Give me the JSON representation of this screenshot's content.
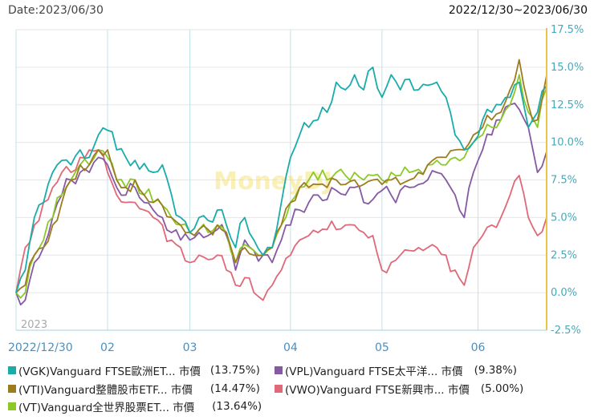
{
  "header": {
    "date_label": "Date:2023/06/30",
    "range_label": "2022/12/30~2023/06/30"
  },
  "watermark": "MoneyDJ",
  "chart_data": {
    "type": "line",
    "title": "",
    "y_unit": "%",
    "ylim": [
      -2.5,
      17.5
    ],
    "y_ticks": [
      "17.5%",
      "15.0%",
      "12.5%",
      "10.0%",
      "7.5%",
      "5.0%",
      "2.5%",
      "0.0%",
      "-2.5%"
    ],
    "y_tick_values": [
      17.5,
      15.0,
      12.5,
      10.0,
      7.5,
      5.0,
      2.5,
      0.0,
      -2.5
    ],
    "x_ticks": [
      "2022/12/30",
      "02",
      "03",
      "04",
      "05",
      "06"
    ],
    "x_tick_index": [
      0,
      20,
      38,
      60,
      80,
      101
    ],
    "year_label": "2023",
    "n_points": 117,
    "series": [
      {
        "name": "(VGK)Vanguard FTSE歐洲ET... 市價",
        "pct_label": "(13.75%)",
        "color": "#1aabab",
        "anchors": [
          [
            0,
            0
          ],
          [
            2,
            1.5
          ],
          [
            4,
            5
          ],
          [
            6,
            6
          ],
          [
            8,
            8
          ],
          [
            10,
            8.8
          ],
          [
            12,
            8.5
          ],
          [
            14,
            9.5
          ],
          [
            16,
            9
          ],
          [
            18,
            10.5
          ],
          [
            20,
            10.8
          ],
          [
            22,
            9.5
          ],
          [
            24,
            9
          ],
          [
            26,
            8.8
          ],
          [
            28,
            8.6
          ],
          [
            30,
            8
          ],
          [
            32,
            8.5
          ],
          [
            34,
            6.5
          ],
          [
            36,
            5
          ],
          [
            38,
            4
          ],
          [
            40,
            5
          ],
          [
            42,
            4.8
          ],
          [
            44,
            5.5
          ],
          [
            46,
            4.5
          ],
          [
            48,
            3
          ],
          [
            50,
            5
          ],
          [
            52,
            3.5
          ],
          [
            54,
            2.5
          ],
          [
            56,
            3
          ],
          [
            58,
            6
          ],
          [
            60,
            9
          ],
          [
            62,
            10.5
          ],
          [
            64,
            11
          ],
          [
            66,
            11.5
          ],
          [
            68,
            12
          ],
          [
            70,
            14
          ],
          [
            72,
            13.5
          ],
          [
            74,
            14.5
          ],
          [
            76,
            13.5
          ],
          [
            78,
            15
          ],
          [
            80,
            13
          ],
          [
            82,
            14.5
          ],
          [
            84,
            13.5
          ],
          [
            86,
            14.2
          ],
          [
            88,
            13.5
          ],
          [
            90,
            13.8
          ],
          [
            92,
            14
          ],
          [
            94,
            13
          ],
          [
            96,
            10.5
          ],
          [
            98,
            9.5
          ],
          [
            100,
            10
          ],
          [
            102,
            11.5
          ],
          [
            104,
            12
          ],
          [
            106,
            12.5
          ],
          [
            108,
            13
          ],
          [
            110,
            14
          ],
          [
            112,
            11
          ],
          [
            114,
            12
          ],
          [
            116,
            13.75
          ]
        ]
      },
      {
        "name": "(VPL)Vanguard FTSE太平洋... 市價",
        "pct_label": "(9.38%)",
        "color": "#8559a3",
        "anchors": [
          [
            0,
            0
          ],
          [
            2,
            -0.5
          ],
          [
            4,
            2
          ],
          [
            6,
            3
          ],
          [
            8,
            5
          ],
          [
            10,
            6.5
          ],
          [
            12,
            7.5
          ],
          [
            14,
            8
          ],
          [
            16,
            8
          ],
          [
            18,
            9
          ],
          [
            20,
            8.5
          ],
          [
            22,
            7
          ],
          [
            24,
            6.5
          ],
          [
            26,
            7
          ],
          [
            28,
            6
          ],
          [
            30,
            5.5
          ],
          [
            32,
            5
          ],
          [
            34,
            4
          ],
          [
            36,
            3.5
          ],
          [
            38,
            3.5
          ],
          [
            40,
            4
          ],
          [
            42,
            3.8
          ],
          [
            44,
            4.2
          ],
          [
            46,
            3.8
          ],
          [
            48,
            1.5
          ],
          [
            50,
            3.5
          ],
          [
            52,
            2.8
          ],
          [
            54,
            2.5
          ],
          [
            56,
            2
          ],
          [
            58,
            3.5
          ],
          [
            60,
            4.5
          ],
          [
            62,
            5.5
          ],
          [
            64,
            6
          ],
          [
            66,
            6.5
          ],
          [
            68,
            6.2
          ],
          [
            70,
            6.8
          ],
          [
            72,
            6.5
          ],
          [
            74,
            7
          ],
          [
            76,
            6
          ],
          [
            78,
            6.2
          ],
          [
            80,
            6.8
          ],
          [
            82,
            6.5
          ],
          [
            84,
            6.8
          ],
          [
            86,
            7
          ],
          [
            88,
            7.2
          ],
          [
            90,
            7.5
          ],
          [
            92,
            8
          ],
          [
            94,
            7.5
          ],
          [
            96,
            6.5
          ],
          [
            98,
            5
          ],
          [
            100,
            8
          ],
          [
            102,
            9.5
          ],
          [
            104,
            10.5
          ],
          [
            106,
            11.5
          ],
          [
            108,
            12.5
          ],
          [
            110,
            12.2
          ],
          [
            112,
            11
          ],
          [
            114,
            8
          ],
          [
            116,
            9.38
          ]
        ]
      },
      {
        "name": "(VTI)Vanguard整體股市ETF... 市價",
        "pct_label": "(14.47%)",
        "color": "#9c7c1f",
        "anchors": [
          [
            0,
            0
          ],
          [
            2,
            0.5
          ],
          [
            4,
            2.5
          ],
          [
            6,
            3
          ],
          [
            8,
            4.5
          ],
          [
            10,
            6
          ],
          [
            12,
            7.5
          ],
          [
            14,
            8.5
          ],
          [
            16,
            8.5
          ],
          [
            18,
            9.5
          ],
          [
            20,
            9.5
          ],
          [
            22,
            7.5
          ],
          [
            24,
            7
          ],
          [
            26,
            7.5
          ],
          [
            28,
            6.5
          ],
          [
            30,
            6
          ],
          [
            32,
            5.8
          ],
          [
            34,
            5
          ],
          [
            36,
            4.5
          ],
          [
            38,
            4
          ],
          [
            40,
            4.2
          ],
          [
            42,
            4.2
          ],
          [
            44,
            4.5
          ],
          [
            46,
            4
          ],
          [
            48,
            2
          ],
          [
            50,
            3
          ],
          [
            52,
            2.5
          ],
          [
            54,
            2.5
          ],
          [
            56,
            3
          ],
          [
            58,
            4.5
          ],
          [
            60,
            6
          ],
          [
            62,
            7
          ],
          [
            64,
            7
          ],
          [
            66,
            7.2
          ],
          [
            68,
            7
          ],
          [
            70,
            7.5
          ],
          [
            72,
            7.2
          ],
          [
            74,
            7.5
          ],
          [
            76,
            7.2
          ],
          [
            78,
            7.5
          ],
          [
            80,
            7.2
          ],
          [
            82,
            7.5
          ],
          [
            84,
            7.2
          ],
          [
            86,
            7.5
          ],
          [
            88,
            8
          ],
          [
            90,
            8.5
          ],
          [
            92,
            9
          ],
          [
            94,
            9
          ],
          [
            96,
            9.5
          ],
          [
            98,
            9.5
          ],
          [
            100,
            10.5
          ],
          [
            102,
            11
          ],
          [
            104,
            11.5
          ],
          [
            106,
            12
          ],
          [
            108,
            13.5
          ],
          [
            110,
            15.5
          ],
          [
            112,
            12.5
          ],
          [
            114,
            11.5
          ],
          [
            116,
            14.47
          ]
        ]
      },
      {
        "name": "(VWO)Vanguard FTSE新興市... 市價",
        "pct_label": "(5.00%)",
        "color": "#e06878",
        "anchors": [
          [
            0,
            0
          ],
          [
            2,
            3
          ],
          [
            4,
            4.5
          ],
          [
            6,
            6
          ],
          [
            8,
            7
          ],
          [
            10,
            8
          ],
          [
            12,
            8
          ],
          [
            14,
            9
          ],
          [
            16,
            9.5
          ],
          [
            18,
            9.5
          ],
          [
            20,
            8
          ],
          [
            22,
            6.5
          ],
          [
            24,
            6
          ],
          [
            26,
            6
          ],
          [
            28,
            5.5
          ],
          [
            30,
            5
          ],
          [
            32,
            4.5
          ],
          [
            34,
            3.5
          ],
          [
            36,
            3
          ],
          [
            38,
            2
          ],
          [
            40,
            2.5
          ],
          [
            42,
            2.2
          ],
          [
            44,
            2.5
          ],
          [
            46,
            1.5
          ],
          [
            48,
            0.5
          ],
          [
            50,
            1
          ],
          [
            52,
            0
          ],
          [
            54,
            -0.5
          ],
          [
            56,
            0.5
          ],
          [
            58,
            1.5
          ],
          [
            60,
            2.5
          ],
          [
            62,
            3.5
          ],
          [
            64,
            3.8
          ],
          [
            66,
            4
          ],
          [
            68,
            4.2
          ],
          [
            70,
            4.2
          ],
          [
            72,
            4.5
          ],
          [
            74,
            4.5
          ],
          [
            76,
            4
          ],
          [
            78,
            3.8
          ],
          [
            80,
            1.5
          ],
          [
            82,
            2
          ],
          [
            84,
            2.5
          ],
          [
            86,
            2.8
          ],
          [
            88,
            3
          ],
          [
            90,
            3
          ],
          [
            92,
            3
          ],
          [
            94,
            2.5
          ],
          [
            96,
            1.5
          ],
          [
            98,
            0.5
          ],
          [
            100,
            3
          ],
          [
            102,
            3.8
          ],
          [
            104,
            4.5
          ],
          [
            106,
            5
          ],
          [
            108,
            6.5
          ],
          [
            110,
            7.8
          ],
          [
            112,
            5
          ],
          [
            114,
            3.8
          ],
          [
            116,
            5.0
          ]
        ]
      },
      {
        "name": "(VT)Vanguard全世界股票ET... 市價",
        "pct_label": "(13.64%)",
        "color": "#8ac926",
        "anchors": [
          [
            0,
            0
          ],
          [
            2,
            0
          ],
          [
            4,
            2.5
          ],
          [
            6,
            3.5
          ],
          [
            8,
            5
          ],
          [
            10,
            6.5
          ],
          [
            12,
            7.5
          ],
          [
            14,
            8.5
          ],
          [
            16,
            8.5
          ],
          [
            18,
            9.5
          ],
          [
            20,
            9
          ],
          [
            22,
            7.5
          ],
          [
            24,
            7
          ],
          [
            26,
            7.5
          ],
          [
            28,
            6.5
          ],
          [
            30,
            6
          ],
          [
            32,
            5.8
          ],
          [
            34,
            5
          ],
          [
            36,
            4.5
          ],
          [
            38,
            4
          ],
          [
            40,
            4.2
          ],
          [
            42,
            4
          ],
          [
            44,
            4.5
          ],
          [
            46,
            4
          ],
          [
            48,
            2
          ],
          [
            50,
            3.2
          ],
          [
            52,
            2.8
          ],
          [
            54,
            2.5
          ],
          [
            56,
            3
          ],
          [
            58,
            4.5
          ],
          [
            60,
            6
          ],
          [
            62,
            7
          ],
          [
            64,
            7.5
          ],
          [
            66,
            7.5
          ],
          [
            68,
            7.5
          ],
          [
            70,
            8
          ],
          [
            72,
            7.8
          ],
          [
            74,
            8
          ],
          [
            76,
            7.5
          ],
          [
            78,
            7.8
          ],
          [
            80,
            7.5
          ],
          [
            82,
            8
          ],
          [
            84,
            7.8
          ],
          [
            86,
            8
          ],
          [
            88,
            8.2
          ],
          [
            90,
            8.5
          ],
          [
            92,
            8.8
          ],
          [
            94,
            8.5
          ],
          [
            96,
            9
          ],
          [
            98,
            9
          ],
          [
            100,
            10
          ],
          [
            102,
            10.5
          ],
          [
            104,
            11
          ],
          [
            106,
            11.5
          ],
          [
            108,
            12.5
          ],
          [
            110,
            14.5
          ],
          [
            112,
            12
          ],
          [
            114,
            11
          ],
          [
            116,
            13.64
          ]
        ]
      }
    ]
  }
}
